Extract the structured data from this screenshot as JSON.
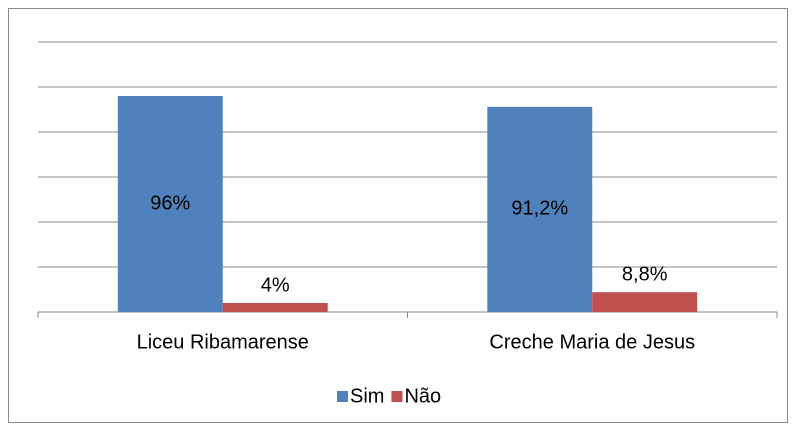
{
  "chart_data": {
    "type": "bar",
    "categories": [
      "Liceu Ribamarense",
      "Creche Maria de Jesus"
    ],
    "series": [
      {
        "name": "Sim",
        "color": "#4f81bd",
        "values": [
          96,
          91.2
        ],
        "value_labels": [
          "96%",
          "91,2%"
        ]
      },
      {
        "name": "Não",
        "color": "#c0504d",
        "values": [
          4,
          8.8
        ],
        "value_labels": [
          "4%",
          "8,8%"
        ]
      }
    ],
    "ylim": [
      0,
      120
    ],
    "yticks": [
      0,
      20,
      40,
      60,
      80,
      100,
      120
    ],
    "grid": true,
    "legend": "bottom"
  }
}
